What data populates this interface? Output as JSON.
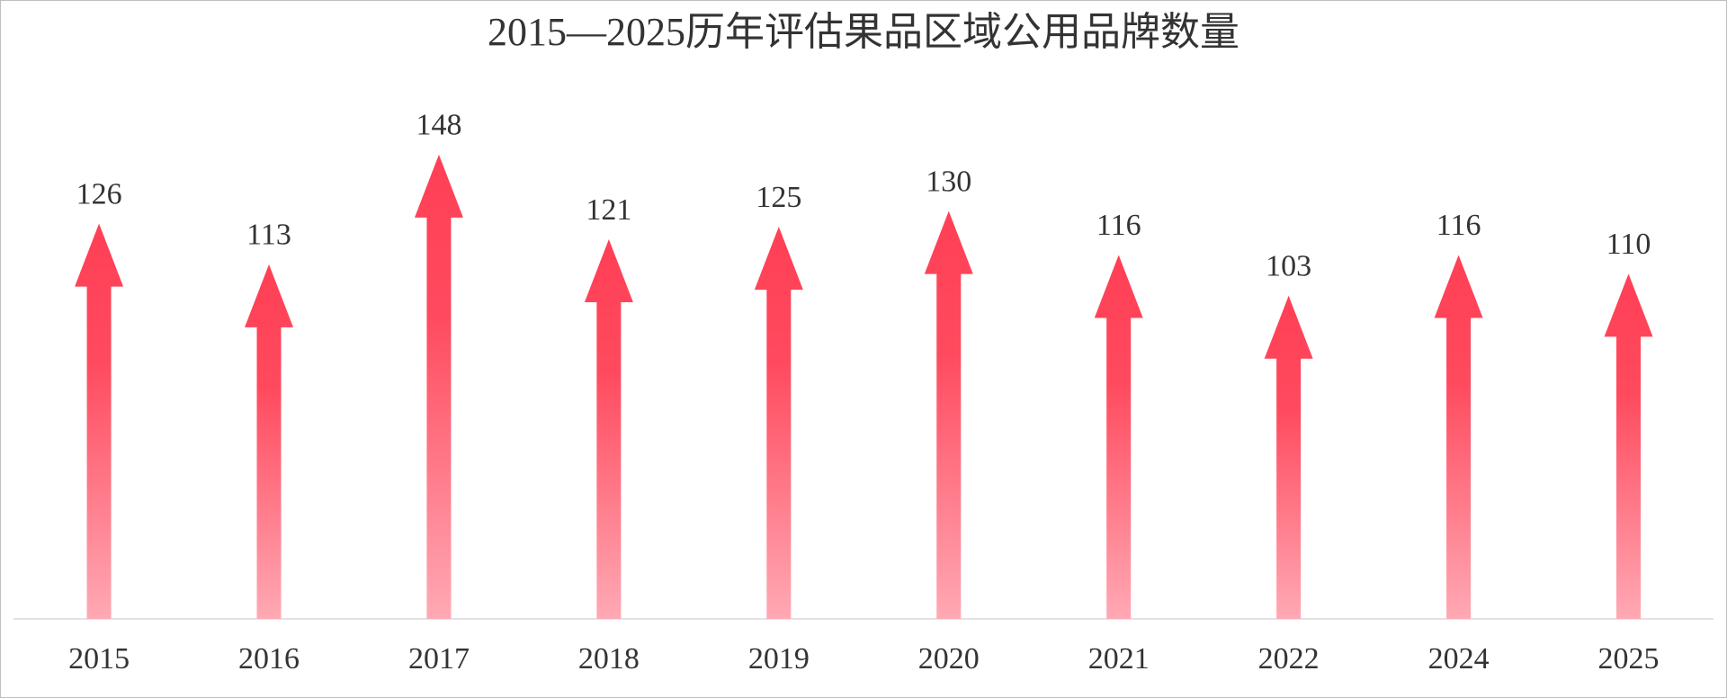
{
  "chart_data": {
    "type": "bar",
    "title": "2015—2025历年评估果品区域公用品牌数量",
    "categories": [
      "2015",
      "2016",
      "2017",
      "2018",
      "2019",
      "2020",
      "2021",
      "2022",
      "2024",
      "2025"
    ],
    "values": [
      126,
      113,
      148,
      121,
      125,
      130,
      116,
      103,
      116,
      110
    ],
    "color": "#ff4559",
    "ylim": [
      0,
      160
    ]
  }
}
